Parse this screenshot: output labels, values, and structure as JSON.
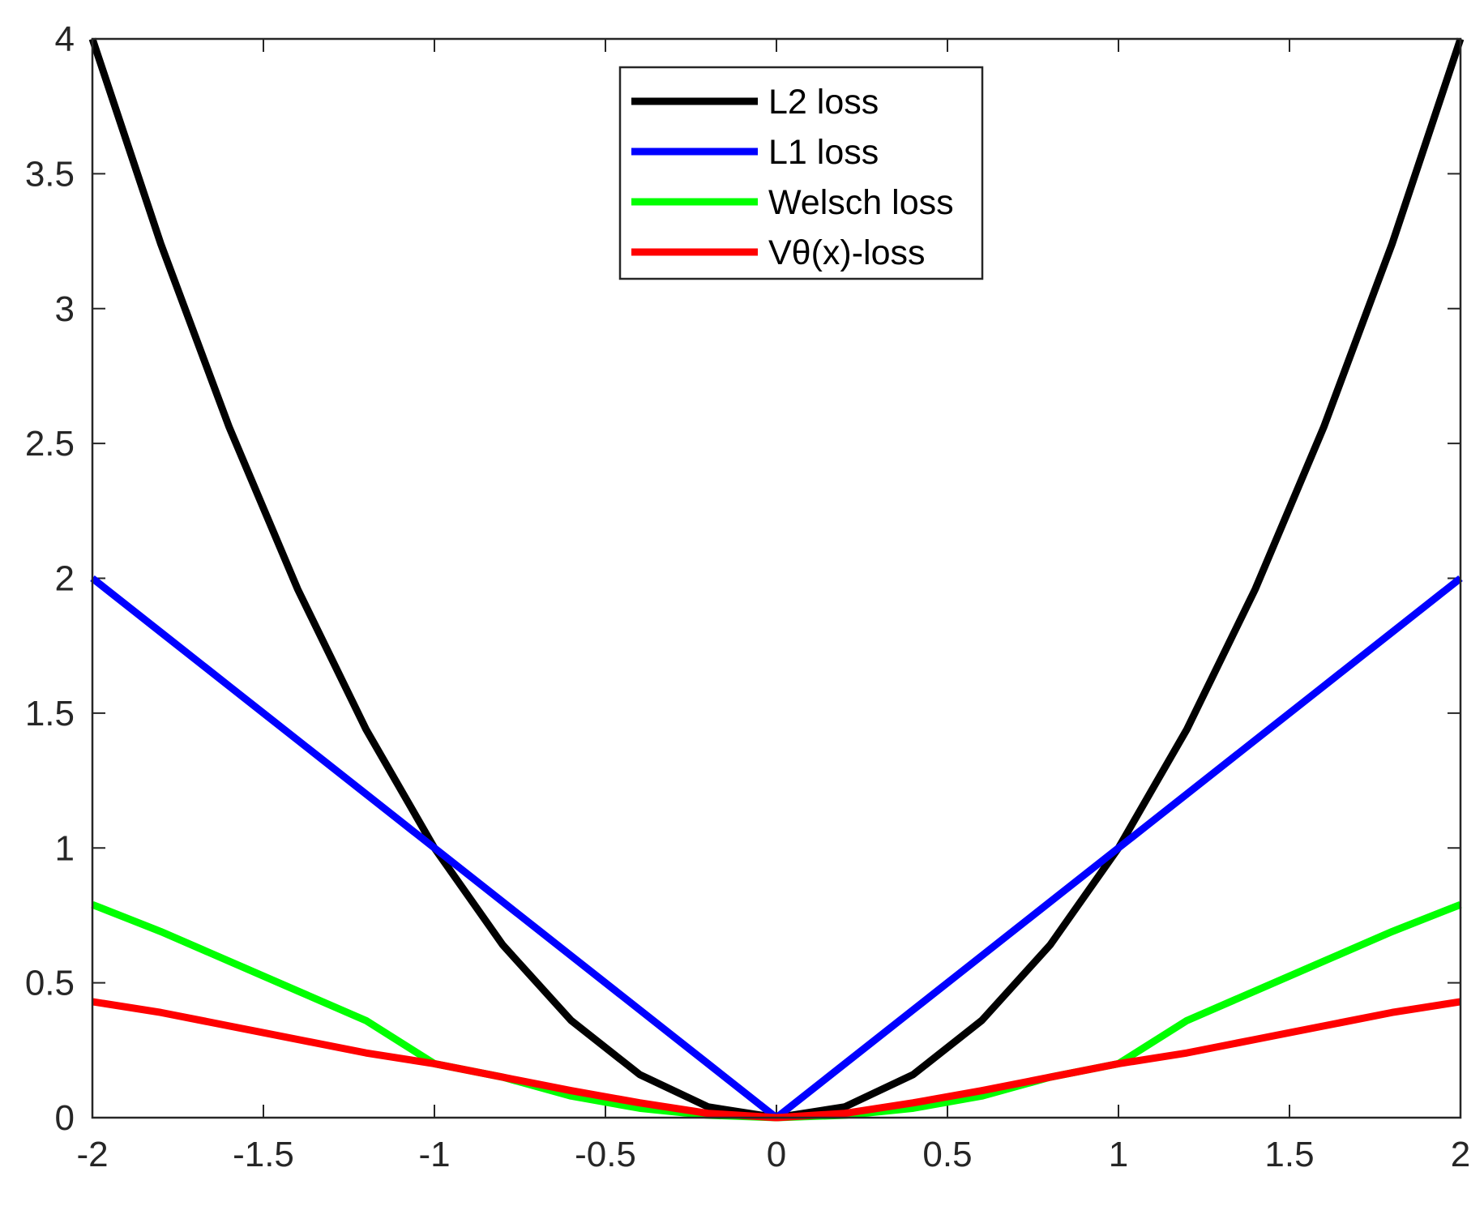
{
  "chart_data": {
    "type": "line",
    "title": "",
    "xlabel": "",
    "ylabel": "",
    "xlim": [
      -2,
      2
    ],
    "ylim": [
      0,
      4
    ],
    "x_ticks": [
      -2,
      -1.5,
      -1,
      -0.5,
      0,
      0.5,
      1,
      1.5,
      2
    ],
    "x_tick_labels": [
      "-2",
      "-1.5",
      "-1",
      "-0.5",
      "0",
      "0.5",
      "1",
      "1.5",
      "2"
    ],
    "y_ticks": [
      0,
      0.5,
      1,
      1.5,
      2,
      2.5,
      3,
      3.5,
      4
    ],
    "y_tick_labels": [
      "0",
      "0.5",
      "1",
      "1.5",
      "2",
      "2.5",
      "3",
      "3.5",
      "4"
    ],
    "grid": false,
    "legend_position": "top-center",
    "x": [
      -2,
      -1.8,
      -1.6,
      -1.4,
      -1.2,
      -1,
      -0.8,
      -0.6,
      -0.4,
      -0.2,
      0,
      0.2,
      0.4,
      0.6,
      0.8,
      1,
      1.2,
      1.4,
      1.6,
      1.8,
      2
    ],
    "series": [
      {
        "name": "L2 loss",
        "color": "#000000",
        "values": [
          4,
          3.24,
          2.56,
          1.96,
          1.44,
          1,
          0.64,
          0.36,
          0.16,
          0.04,
          0,
          0.04,
          0.16,
          0.36,
          0.64,
          1,
          1.44,
          1.96,
          2.56,
          3.24,
          4
        ]
      },
      {
        "name": "L1 loss",
        "color": "#0000ff",
        "values": [
          2,
          1.8,
          1.6,
          1.4,
          1.2,
          1,
          0.8,
          0.6,
          0.4,
          0.2,
          0,
          0.2,
          0.4,
          0.6,
          0.8,
          1,
          1.2,
          1.4,
          1.6,
          1.8,
          2
        ]
      },
      {
        "name": "Welsch loss",
        "color": "#00ff00",
        "values": [
          0.79,
          0.69,
          0.58,
          0.47,
          0.36,
          0.2,
          0.15,
          0.08,
          0.035,
          0.009,
          0,
          0.009,
          0.035,
          0.08,
          0.15,
          0.2,
          0.36,
          0.47,
          0.58,
          0.69,
          0.79
        ]
      },
      {
        "name": "Vθ(x)-loss",
        "color": "#ff0000",
        "values": [
          0.43,
          0.39,
          0.34,
          0.29,
          0.24,
          0.2,
          0.15,
          0.1,
          0.055,
          0.016,
          0,
          0.016,
          0.055,
          0.1,
          0.15,
          0.2,
          0.24,
          0.29,
          0.34,
          0.39,
          0.43
        ]
      }
    ]
  }
}
